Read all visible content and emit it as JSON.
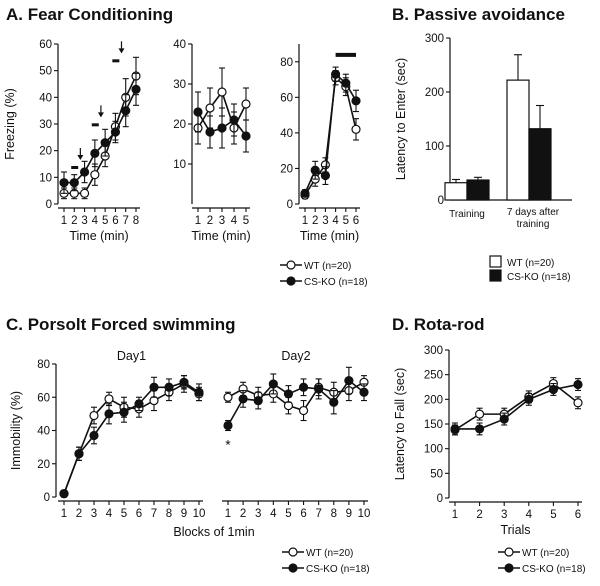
{
  "panels": {
    "A": {
      "title": "A.  Fear Conditioning"
    },
    "B": {
      "title": "B.  Passive avoidance"
    },
    "C": {
      "title": "C.  Porsolt Forced swimming"
    },
    "D": {
      "title": "D.  Rota-rod"
    }
  },
  "legend": {
    "wt": "WT (n=20)",
    "ko": "CS-KO (n=18)"
  },
  "colors": {
    "wt": "#ffffff",
    "ko": "#111111",
    "line": "#111111"
  },
  "annotations": {
    "star": "*"
  },
  "chart_data": [
    {
      "id": "A1",
      "type": "line",
      "ylabel": "Freezing (%)",
      "xlabel": "Time (min)",
      "ylim": [
        0,
        60
      ],
      "yticks": [
        0,
        10,
        20,
        30,
        40,
        50,
        60
      ],
      "x": [
        1,
        2,
        3,
        4,
        5,
        6,
        7,
        8
      ],
      "series": [
        {
          "name": "WT (n=20)",
          "values": [
            4,
            4,
            4,
            11,
            18,
            29,
            40,
            48
          ],
          "err": [
            2,
            2,
            2,
            4,
            4,
            5,
            7,
            7
          ]
        },
        {
          "name": "CS-KO (n=18)",
          "values": [
            8,
            8,
            12,
            19,
            23,
            27,
            35,
            43
          ],
          "err": [
            4,
            3,
            4,
            5,
            5,
            4,
            6,
            6
          ]
        }
      ],
      "markers": {
        "shock_minutes": [
          2,
          4,
          6
        ]
      }
    },
    {
      "id": "A2",
      "type": "line",
      "xlabel": "Time (min)",
      "ylim": [
        0,
        40
      ],
      "yticks": [
        10,
        20,
        30,
        40
      ],
      "x": [
        1,
        2,
        3,
        4,
        5
      ],
      "series": [
        {
          "name": "WT (n=20)",
          "values": [
            19,
            24,
            28,
            19,
            25
          ],
          "err": [
            4,
            5,
            6,
            4,
            4
          ]
        },
        {
          "name": "CS-KO (n=18)",
          "values": [
            23,
            18,
            19,
            21,
            17
          ],
          "err": [
            5,
            4,
            5,
            4,
            4
          ]
        }
      ]
    },
    {
      "id": "A3",
      "type": "line",
      "xlabel": "Time (min)",
      "ylim": [
        0,
        90
      ],
      "yticks": [
        0,
        20,
        40,
        60,
        80
      ],
      "x": [
        1,
        2,
        3,
        4,
        5,
        6
      ],
      "series": [
        {
          "name": "WT (n=20)",
          "values": [
            5,
            14,
            22,
            71,
            66,
            42
          ],
          "err": [
            2,
            4,
            4,
            4,
            5,
            6
          ]
        },
        {
          "name": "CS-KO (n=18)",
          "values": [
            6,
            19,
            16,
            73,
            68,
            58
          ],
          "err": [
            2,
            5,
            5,
            4,
            5,
            6
          ]
        }
      ],
      "markers": {
        "bar_from": 4,
        "bar_to": 6
      }
    },
    {
      "id": "B",
      "type": "bar",
      "ylabel": "Latency to Enter (sec)",
      "categories": [
        "Training",
        "7 days after training"
      ],
      "ylim": [
        0,
        300
      ],
      "yticks": [
        0,
        100,
        200,
        300
      ],
      "series": [
        {
          "name": "WT (n=20)",
          "values": [
            32,
            222
          ],
          "err": [
            6,
            47
          ]
        },
        {
          "name": "CS-KO (n=18)",
          "values": [
            37,
            132
          ],
          "err": [
            5,
            43
          ]
        }
      ]
    },
    {
      "id": "C",
      "type": "line",
      "ylabel": "Immobility (%)",
      "xlabel": "Blocks of 1min",
      "ylim": [
        0,
        80
      ],
      "yticks": [
        0,
        20,
        40,
        60,
        80
      ],
      "x": [
        1,
        2,
        3,
        4,
        5,
        6,
        7,
        8,
        9,
        10
      ],
      "subplots": [
        {
          "title": "Day1",
          "series": [
            {
              "name": "WT (n=20)",
              "values": [
                2,
                26,
                49,
                59,
                54,
                53,
                58,
                63,
                68,
                62
              ],
              "err": [
                2,
                4,
                5,
                4,
                6,
                5,
                6,
                5,
                5,
                4
              ]
            },
            {
              "name": "CS-KO (n=18)",
              "values": [
                2,
                26,
                37,
                50,
                51,
                56,
                66,
                66,
                69,
                63
              ],
              "err": [
                2,
                4,
                5,
                6,
                6,
                4,
                6,
                5,
                4,
                5
              ]
            }
          ]
        },
        {
          "title": "Day2",
          "series": [
            {
              "name": "WT (n=20)",
              "values": [
                60,
                65,
                61,
                62,
                55,
                52,
                66,
                63,
                64,
                69
              ],
              "err": [
                3,
                4,
                5,
                5,
                5,
                6,
                5,
                6,
                6,
                4
              ]
            },
            {
              "name": "CS-KO (n=18)",
              "values": [
                43,
                59,
                58,
                68,
                62,
                66,
                65,
                57,
                70,
                63
              ],
              "err": [
                3,
                5,
                5,
                6,
                5,
                5,
                6,
                7,
                8,
                5
              ]
            }
          ]
        }
      ]
    },
    {
      "id": "D",
      "type": "line",
      "ylabel": "Latency to Fall (sec)",
      "xlabel": "Trials",
      "ylim": [
        0,
        300
      ],
      "yticks": [
        0,
        50,
        100,
        150,
        200,
        250,
        300
      ],
      "x": [
        1,
        2,
        3,
        4,
        5,
        6
      ],
      "series": [
        {
          "name": "WT (n=20)",
          "values": [
            138,
            170,
            170,
            205,
            232,
            193
          ],
          "err": [
            10,
            12,
            12,
            12,
            12,
            12
          ]
        },
        {
          "name": "CS-KO (n=18)",
          "values": [
            140,
            140,
            160,
            200,
            220,
            230
          ],
          "err": [
            12,
            12,
            12,
            12,
            12,
            12
          ]
        }
      ]
    }
  ]
}
